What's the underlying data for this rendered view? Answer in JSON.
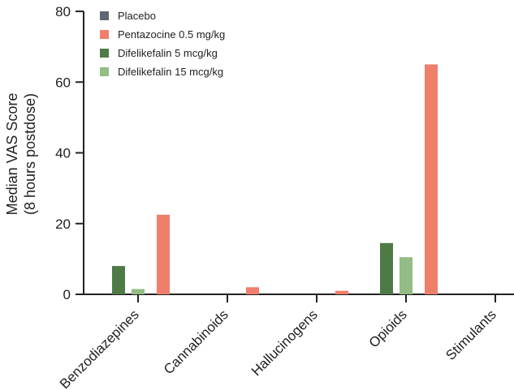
{
  "chart_data": {
    "type": "bar",
    "ylabel_lines": [
      "Median VAS Score",
      "(8 hours  postdose)"
    ],
    "categories": [
      "Benzodiazepines",
      "Cannabinoids",
      "Hallucinogens",
      "Opioids",
      "Stimulants"
    ],
    "ylim": [
      0,
      80
    ],
    "yticks": [
      0,
      20,
      40,
      60,
      80
    ],
    "grid": false,
    "legend_position": "top-left",
    "series": [
      {
        "name": "Placebo",
        "color": "#5f6670",
        "values": [
          0,
          0,
          0,
          0,
          0
        ]
      },
      {
        "name": "Pentazocine 0.5 mg/kg",
        "color": "#ef7f6b",
        "values": [
          22.5,
          2,
          1,
          65,
          0
        ]
      },
      {
        "name": "Difelikefalin 5 mcg/kg",
        "color": "#4e7a46",
        "values": [
          8,
          0,
          0,
          14.5,
          0
        ]
      },
      {
        "name": "Difelikefalin 15 mcg/kg",
        "color": "#93bd84",
        "values": [
          1.5,
          0,
          0,
          10.5,
          0
        ]
      }
    ]
  }
}
